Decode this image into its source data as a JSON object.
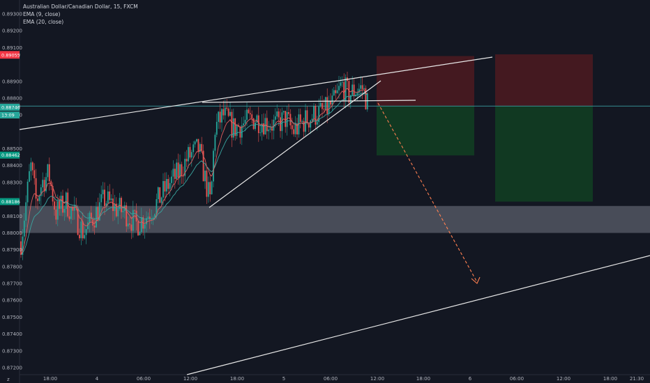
{
  "legend": {
    "symbol": "Australian Dollar/Canadian Dollar, 15, FXCM",
    "ema9": "EMA (9, close)",
    "ema20": "EMA (20, close)"
  },
  "colors": {
    "background": "#131722",
    "bull": "#26a69a",
    "bear": "#ef5350",
    "ema9": "#e06060",
    "ema20": "#3aa5a0",
    "trendline": "#e8e8e8",
    "projection": "#ff7f50",
    "support_zone": "#8a8f9c",
    "stop_zone": "#4a1a20",
    "target_zone": "#123d22",
    "price_line": "#3b9aa0"
  },
  "chart_data": {
    "type": "candlestick",
    "symbol": "Australian Dollar/Canadian Dollar",
    "timeframe": "15",
    "exchange": "FXCM",
    "ylim": [
      0.87192,
      0.89388
    ],
    "y_ticks": [
      "0.89300",
      "0.89200",
      "0.89100",
      "0.88900",
      "0.88800",
      "0.88700",
      "0.88500",
      "0.88400",
      "0.88300",
      "0.88100",
      "0.88000",
      "0.87900",
      "0.87800",
      "0.87700",
      "0.87600",
      "0.87500",
      "0.87400",
      "0.87300",
      "0.87200"
    ],
    "x_ticks": [
      "18:00",
      "4",
      "06:00",
      "12:00",
      "18:00",
      "5",
      "06:00",
      "12:00",
      "18:00",
      "6",
      "06:00",
      "12:00",
      "18:00",
      "21:30"
    ],
    "price_badges": [
      {
        "label": "0.89059",
        "price": 0.89059,
        "color": "#f23645"
      },
      {
        "label": "0.89055",
        "price": 0.89055,
        "color": "#f23645"
      },
      {
        "label": "0.88753",
        "price": 0.88753,
        "color": "#2c2f3a"
      },
      {
        "label": "0.88756",
        "price": 0.88756,
        "color": "#2c2f3a"
      },
      {
        "label": "0.88746",
        "price": 0.88746,
        "color": "#26a69a"
      },
      {
        "label": "13:09",
        "price": 0.887,
        "color": "#26a69a"
      },
      {
        "label": "0.88462",
        "price": 0.88462,
        "color": "#089981"
      },
      {
        "label": "0.88186",
        "price": 0.88186,
        "color": "#089981"
      }
    ],
    "ohlc_sample": [
      {
        "open": 0.8797,
        "high": 0.8806,
        "low": 0.879,
        "close": 0.8803
      },
      {
        "open": 0.8803,
        "high": 0.8845,
        "low": 0.88,
        "close": 0.8842
      },
      {
        "open": 0.8842,
        "high": 0.8848,
        "low": 0.882,
        "close": 0.8825
      },
      {
        "open": 0.8825,
        "high": 0.883,
        "low": 0.88,
        "close": 0.8808
      },
      {
        "open": 0.8808,
        "high": 0.882,
        "low": 0.8801,
        "close": 0.8815
      },
      {
        "open": 0.8815,
        "high": 0.885,
        "low": 0.8812,
        "close": 0.8847
      },
      {
        "open": 0.8847,
        "high": 0.885,
        "low": 0.8815,
        "close": 0.8818
      },
      {
        "open": 0.8818,
        "high": 0.8875,
        "low": 0.8814,
        "close": 0.887
      },
      {
        "open": 0.887,
        "high": 0.8878,
        "low": 0.8855,
        "close": 0.8865
      },
      {
        "open": 0.8865,
        "high": 0.8875,
        "low": 0.886,
        "close": 0.8872
      },
      {
        "open": 0.8872,
        "high": 0.8892,
        "low": 0.8868,
        "close": 0.8887
      },
      {
        "open": 0.8887,
        "high": 0.8891,
        "low": 0.887,
        "close": 0.8875
      }
    ]
  }
}
